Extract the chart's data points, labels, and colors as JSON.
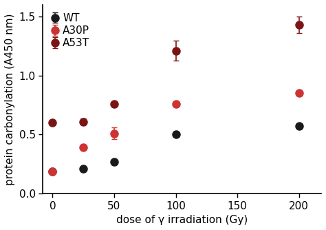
{
  "title": "",
  "xlabel": "dose of γ irradiation (Gy)",
  "ylabel": "protein carbonylation (A450 nm)",
  "xlim": [
    -8,
    218
  ],
  "ylim": [
    0,
    1.6
  ],
  "yticks": [
    0,
    0.5,
    1.0,
    1.5
  ],
  "xticks": [
    0,
    50,
    100,
    150,
    200
  ],
  "series": [
    {
      "label": "WT",
      "color": "#1a1a1a",
      "x": [
        0,
        25,
        50,
        100,
        200
      ],
      "y": [
        0.19,
        0.21,
        0.27,
        0.5,
        0.57
      ],
      "yerr": [
        0.0,
        0.02,
        0.0,
        0.0,
        0.0
      ]
    },
    {
      "label": "A30P",
      "color": "#cd3333",
      "x": [
        0,
        25,
        50,
        100,
        200
      ],
      "y": [
        0.19,
        0.39,
        0.51,
        0.76,
        0.85
      ],
      "yerr": [
        0.0,
        0.0,
        0.05,
        0.0,
        0.0
      ]
    },
    {
      "label": "A53T",
      "color": "#7b1515",
      "x": [
        0,
        25,
        50,
        100,
        200
      ],
      "y": [
        0.6,
        0.61,
        0.76,
        1.21,
        1.43
      ],
      "yerr": [
        0.0,
        0.025,
        0.02,
        0.085,
        0.07
      ]
    }
  ],
  "marker_size": 8,
  "capsize": 3,
  "elinewidth": 1.2,
  "font_size": 11,
  "tick_font_size": 11,
  "legend_fontsize": 11
}
